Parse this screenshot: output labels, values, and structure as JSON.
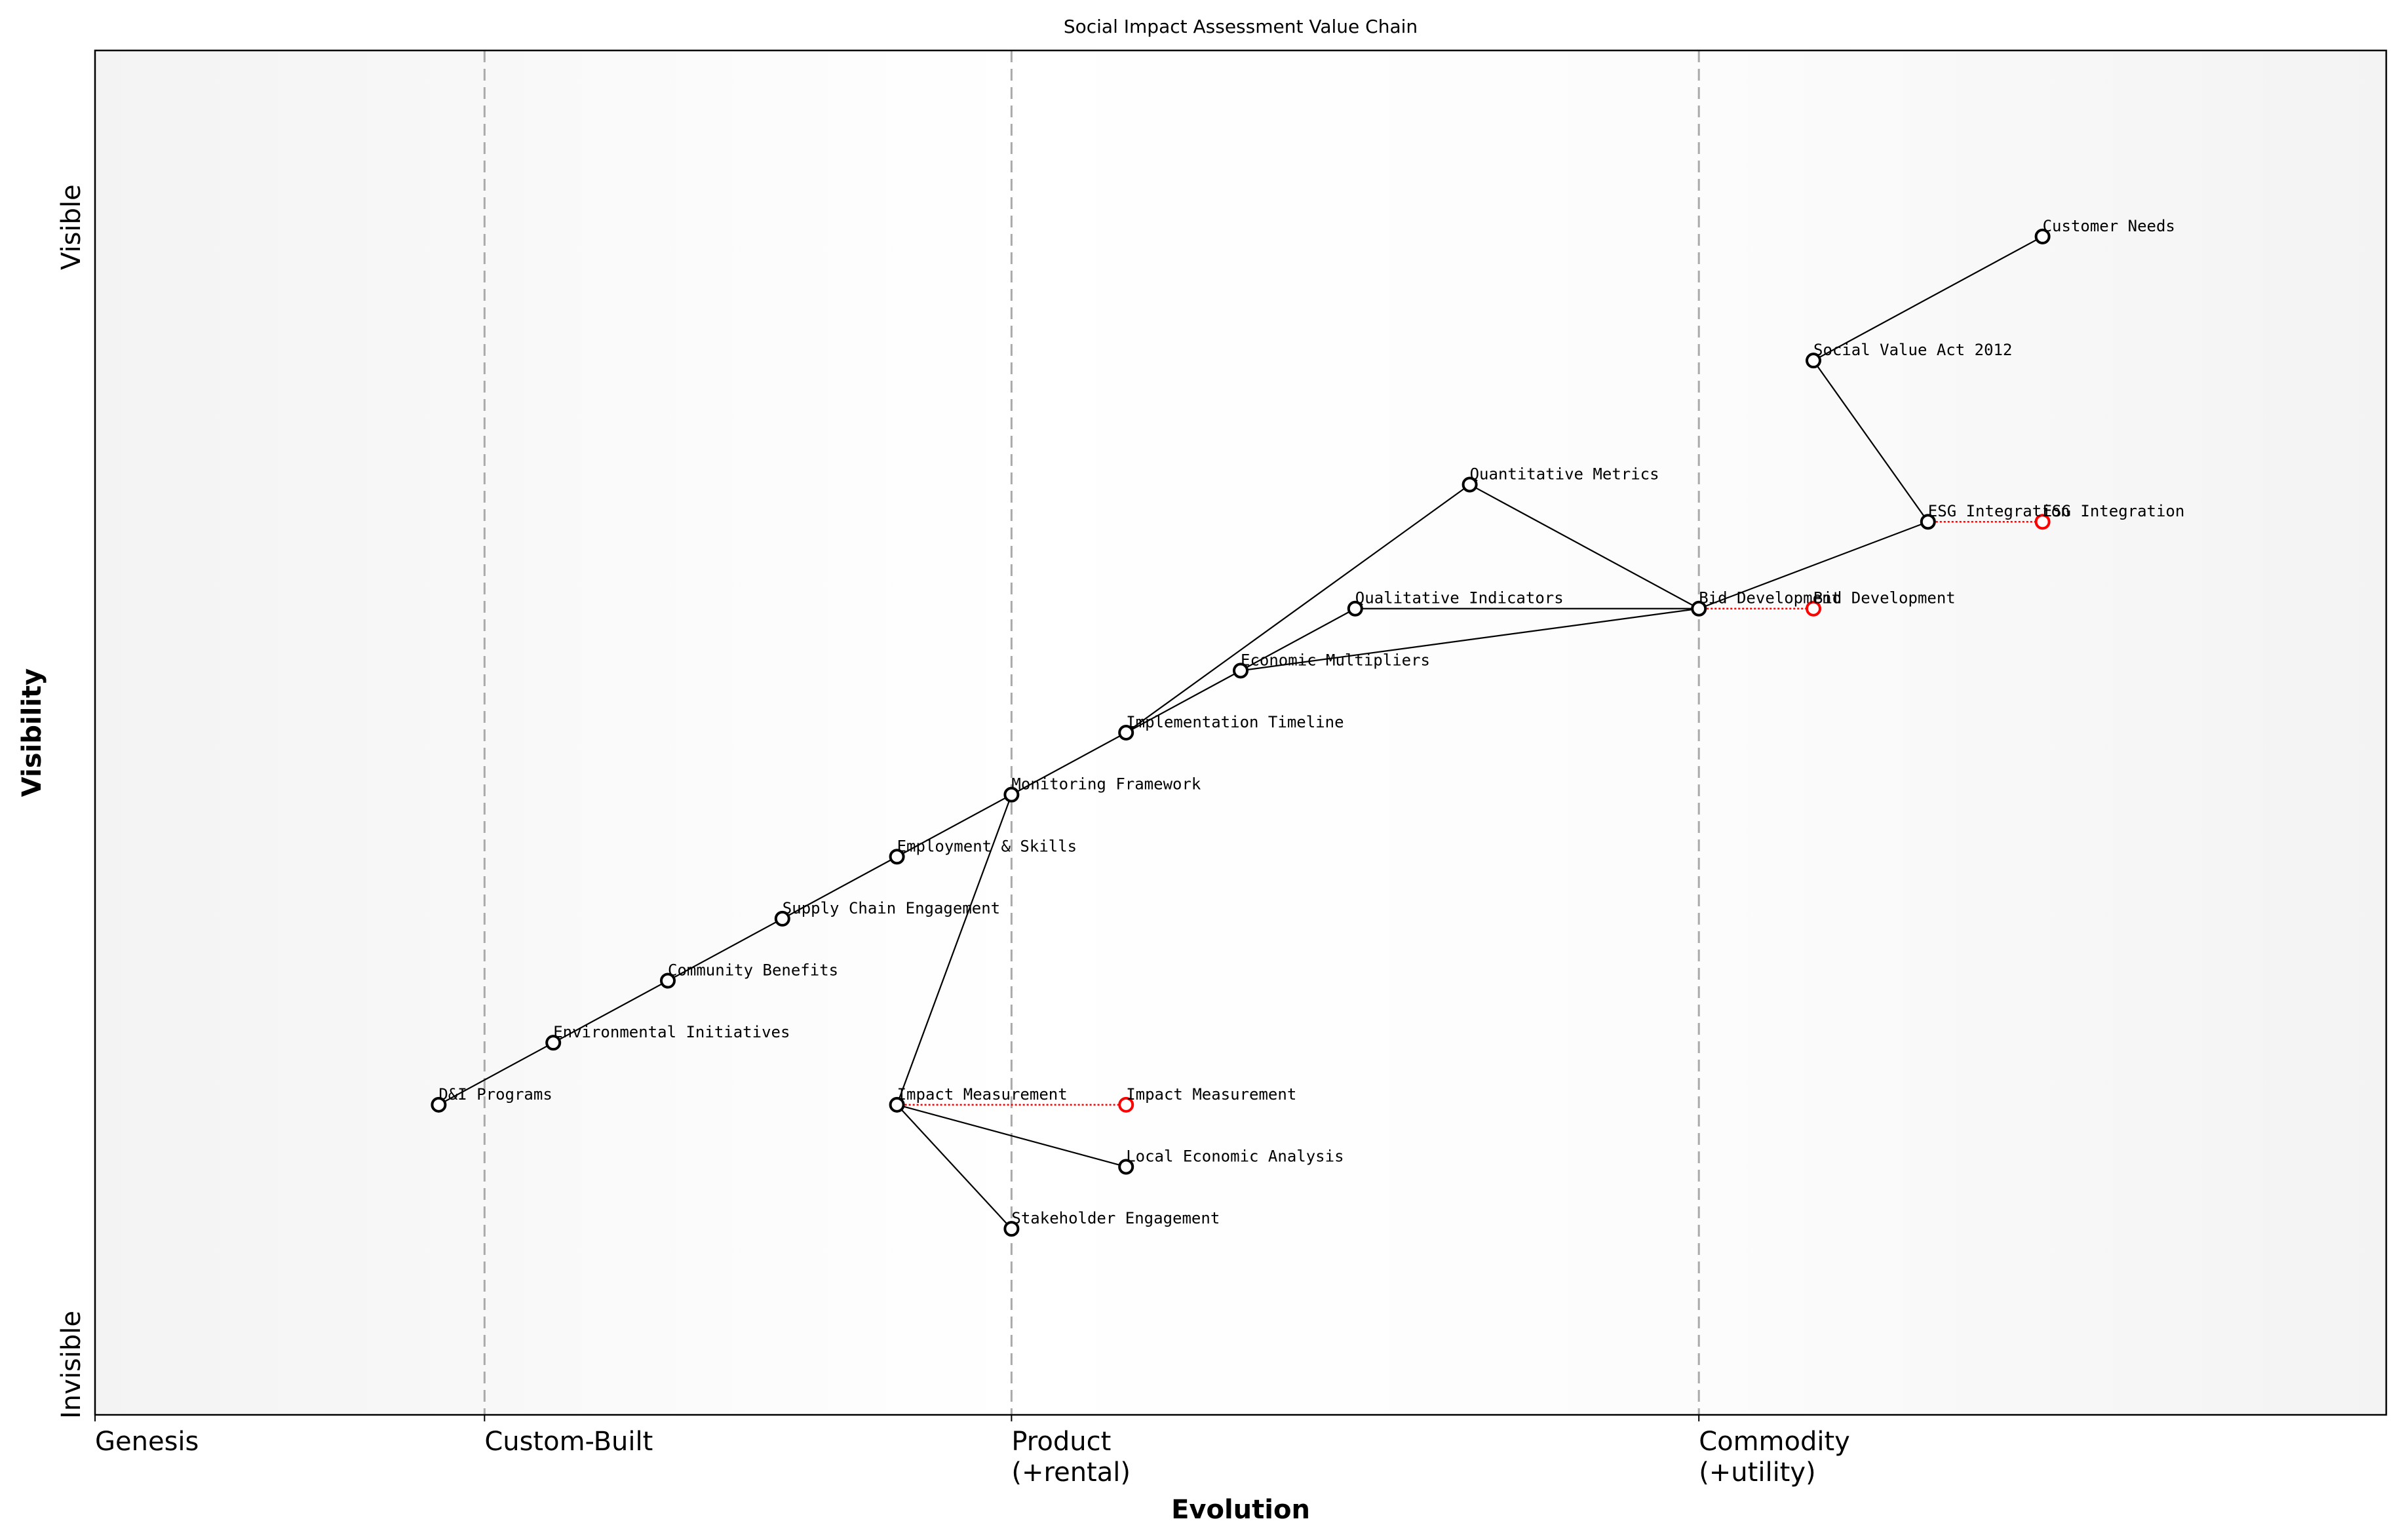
{
  "title": "Social Impact Assessment Value Chain",
  "x_axis": {
    "label": "Evolution",
    "range": [
      0,
      1
    ],
    "stages": [
      {
        "label": "Genesis",
        "sub": "",
        "at": 0.0,
        "divider": false
      },
      {
        "label": "Custom-Built",
        "sub": "",
        "at": 0.17,
        "divider": true
      },
      {
        "label": "Product",
        "sub": "(+rental)",
        "at": 0.4,
        "divider": true
      },
      {
        "label": "Commodity",
        "sub": "(+utility)",
        "at": 0.7,
        "divider": true
      }
    ]
  },
  "y_axis": {
    "label": "Visibility",
    "top_label": "Visible",
    "bottom_label": "Invisible",
    "range": [
      0,
      1.1
    ]
  },
  "colors": {
    "node": "#000000",
    "evolved": "#ff0000",
    "divider": "#aaaaaa",
    "edge_bg": "#f3f3f3"
  },
  "components": [
    {
      "name": "Customer Needs",
      "evolution": 0.85,
      "visibility": 0.95
    },
    {
      "name": "Social Value Act 2012",
      "evolution": 0.75,
      "visibility": 0.85
    },
    {
      "name": "Quantitative Metrics",
      "evolution": 0.6,
      "visibility": 0.75
    },
    {
      "name": "ESG Integration",
      "evolution": 0.8,
      "visibility": 0.72
    },
    {
      "name": "Bid Development",
      "evolution": 0.7,
      "visibility": 0.65
    },
    {
      "name": "Qualitative Indicators",
      "evolution": 0.55,
      "visibility": 0.65
    },
    {
      "name": "Economic Multipliers",
      "evolution": 0.5,
      "visibility": 0.6
    },
    {
      "name": "Implementation Timeline",
      "evolution": 0.45,
      "visibility": 0.55
    },
    {
      "name": "Monitoring Framework",
      "evolution": 0.4,
      "visibility": 0.5
    },
    {
      "name": "Employment & Skills",
      "evolution": 0.35,
      "visibility": 0.45
    },
    {
      "name": "Supply Chain Engagement",
      "evolution": 0.3,
      "visibility": 0.4
    },
    {
      "name": "Community Benefits",
      "evolution": 0.25,
      "visibility": 0.35
    },
    {
      "name": "Environmental Initiatives",
      "evolution": 0.2,
      "visibility": 0.3
    },
    {
      "name": "D&I Programs",
      "evolution": 0.15,
      "visibility": 0.25
    },
    {
      "name": "Impact Measurement",
      "evolution": 0.35,
      "visibility": 0.25
    },
    {
      "name": "Local Economic Analysis",
      "evolution": 0.45,
      "visibility": 0.2
    },
    {
      "name": "Stakeholder Engagement",
      "evolution": 0.4,
      "visibility": 0.15
    }
  ],
  "links": [
    [
      "Customer Needs",
      "Social Value Act 2012"
    ],
    [
      "Social Value Act 2012",
      "ESG Integration"
    ],
    [
      "ESG Integration",
      "Bid Development"
    ],
    [
      "Bid Development",
      "Quantitative Metrics"
    ],
    [
      "Bid Development",
      "Qualitative Indicators"
    ],
    [
      "Bid Development",
      "Economic Multipliers"
    ],
    [
      "Qualitative Indicators",
      "Economic Multipliers"
    ],
    [
      "Quantitative Metrics",
      "Implementation Timeline"
    ],
    [
      "Economic Multipliers",
      "Implementation Timeline"
    ],
    [
      "Implementation Timeline",
      "Monitoring Framework"
    ],
    [
      "Monitoring Framework",
      "Employment & Skills"
    ],
    [
      "Employment & Skills",
      "Supply Chain Engagement"
    ],
    [
      "Supply Chain Engagement",
      "Community Benefits"
    ],
    [
      "Community Benefits",
      "Environmental Initiatives"
    ],
    [
      "Environmental Initiatives",
      "D&I Programs"
    ],
    [
      "Monitoring Framework",
      "Impact Measurement"
    ],
    [
      "Impact Measurement",
      "Local Economic Analysis"
    ],
    [
      "Impact Measurement",
      "Stakeholder Engagement"
    ]
  ],
  "evolutions": [
    {
      "name": "Impact Measurement",
      "to": 0.45
    },
    {
      "name": "Bid Development",
      "to": 0.75
    },
    {
      "name": "ESG Integration",
      "to": 0.85
    }
  ]
}
